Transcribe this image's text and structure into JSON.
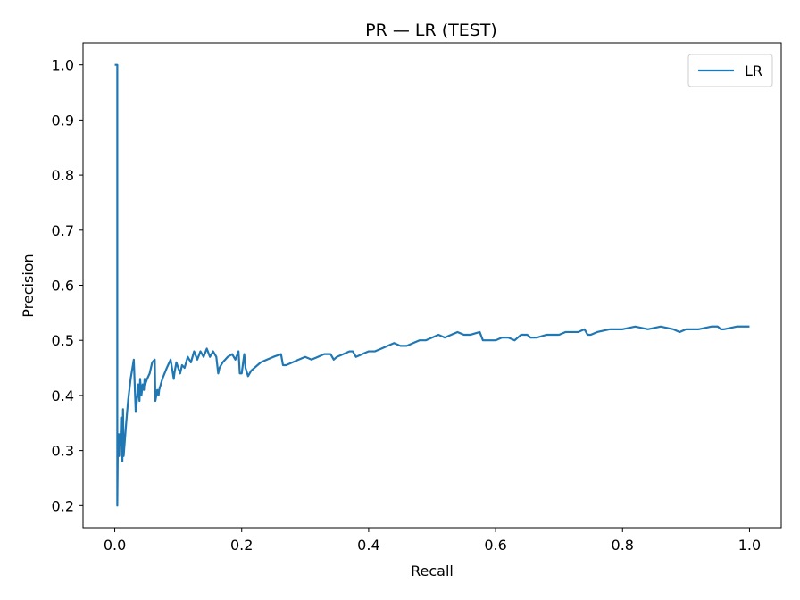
{
  "chart_data": {
    "type": "line",
    "title": "PR — LR (TEST)",
    "xlabel": "Recall",
    "ylabel": "Precision",
    "xlim": [
      -0.05,
      1.05
    ],
    "ylim": [
      0.16,
      1.04
    ],
    "xticks": [
      0.0,
      0.2,
      0.4,
      0.6,
      0.8,
      1.0
    ],
    "xtick_labels": [
      "0.0",
      "0.2",
      "0.4",
      "0.6",
      "0.8",
      "1.0"
    ],
    "yticks": [
      0.2,
      0.3,
      0.4,
      0.5,
      0.6,
      0.7,
      0.8,
      0.9,
      1.0
    ],
    "ytick_labels": [
      "0.2",
      "0.3",
      "0.4",
      "0.5",
      "0.6",
      "0.7",
      "0.8",
      "0.9",
      "1.0"
    ],
    "grid": false,
    "legend": {
      "position": "top-right",
      "entries": [
        "LR"
      ]
    },
    "series": [
      {
        "name": "LR",
        "color": "#1f77b4",
        "x": [
          0.0,
          0.004,
          0.004,
          0.005,
          0.007,
          0.008,
          0.009,
          0.01,
          0.012,
          0.013,
          0.014,
          0.016,
          0.018,
          0.021,
          0.025,
          0.03,
          0.033,
          0.034,
          0.037,
          0.039,
          0.04,
          0.042,
          0.044,
          0.046,
          0.047,
          0.048,
          0.051,
          0.055,
          0.059,
          0.063,
          0.064,
          0.067,
          0.069,
          0.07,
          0.075,
          0.082,
          0.088,
          0.093,
          0.094,
          0.097,
          0.1,
          0.103,
          0.106,
          0.11,
          0.115,
          0.12,
          0.125,
          0.13,
          0.135,
          0.14,
          0.145,
          0.15,
          0.155,
          0.16,
          0.163,
          0.165,
          0.17,
          0.178,
          0.185,
          0.19,
          0.195,
          0.197,
          0.2,
          0.204,
          0.206,
          0.21,
          0.215,
          0.22,
          0.23,
          0.24,
          0.25,
          0.262,
          0.265,
          0.27,
          0.28,
          0.29,
          0.3,
          0.31,
          0.32,
          0.33,
          0.34,
          0.345,
          0.35,
          0.36,
          0.37,
          0.375,
          0.38,
          0.39,
          0.4,
          0.41,
          0.42,
          0.43,
          0.44,
          0.45,
          0.46,
          0.47,
          0.48,
          0.49,
          0.5,
          0.51,
          0.52,
          0.53,
          0.54,
          0.55,
          0.56,
          0.575,
          0.58,
          0.59,
          0.6,
          0.61,
          0.62,
          0.63,
          0.64,
          0.65,
          0.655,
          0.665,
          0.68,
          0.7,
          0.71,
          0.72,
          0.73,
          0.74,
          0.745,
          0.75,
          0.76,
          0.78,
          0.8,
          0.82,
          0.84,
          0.86,
          0.88,
          0.89,
          0.9,
          0.92,
          0.94,
          0.95,
          0.955,
          0.96,
          0.98,
          1.0
        ],
        "y": [
          1.0,
          1.0,
          0.2,
          0.33,
          0.29,
          0.33,
          0.31,
          0.36,
          0.28,
          0.375,
          0.29,
          0.32,
          0.35,
          0.39,
          0.43,
          0.465,
          0.37,
          0.38,
          0.42,
          0.39,
          0.43,
          0.4,
          0.42,
          0.41,
          0.43,
          0.42,
          0.43,
          0.44,
          0.46,
          0.465,
          0.39,
          0.41,
          0.4,
          0.41,
          0.43,
          0.45,
          0.465,
          0.43,
          0.44,
          0.46,
          0.45,
          0.44,
          0.455,
          0.45,
          0.47,
          0.46,
          0.48,
          0.465,
          0.48,
          0.47,
          0.485,
          0.47,
          0.48,
          0.47,
          0.44,
          0.45,
          0.46,
          0.47,
          0.475,
          0.465,
          0.48,
          0.44,
          0.44,
          0.475,
          0.45,
          0.435,
          0.445,
          0.45,
          0.46,
          0.465,
          0.47,
          0.475,
          0.455,
          0.455,
          0.46,
          0.465,
          0.47,
          0.465,
          0.47,
          0.475,
          0.475,
          0.465,
          0.47,
          0.475,
          0.48,
          0.48,
          0.47,
          0.475,
          0.48,
          0.48,
          0.485,
          0.49,
          0.495,
          0.49,
          0.49,
          0.495,
          0.5,
          0.5,
          0.505,
          0.51,
          0.505,
          0.51,
          0.515,
          0.51,
          0.51,
          0.515,
          0.5,
          0.5,
          0.5,
          0.505,
          0.505,
          0.5,
          0.51,
          0.51,
          0.505,
          0.505,
          0.51,
          0.51,
          0.515,
          0.515,
          0.515,
          0.52,
          0.51,
          0.51,
          0.515,
          0.52,
          0.52,
          0.525,
          0.52,
          0.525,
          0.52,
          0.515,
          0.52,
          0.52,
          0.525,
          0.525,
          0.52,
          0.52,
          0.525,
          0.525
        ]
      }
    ]
  }
}
